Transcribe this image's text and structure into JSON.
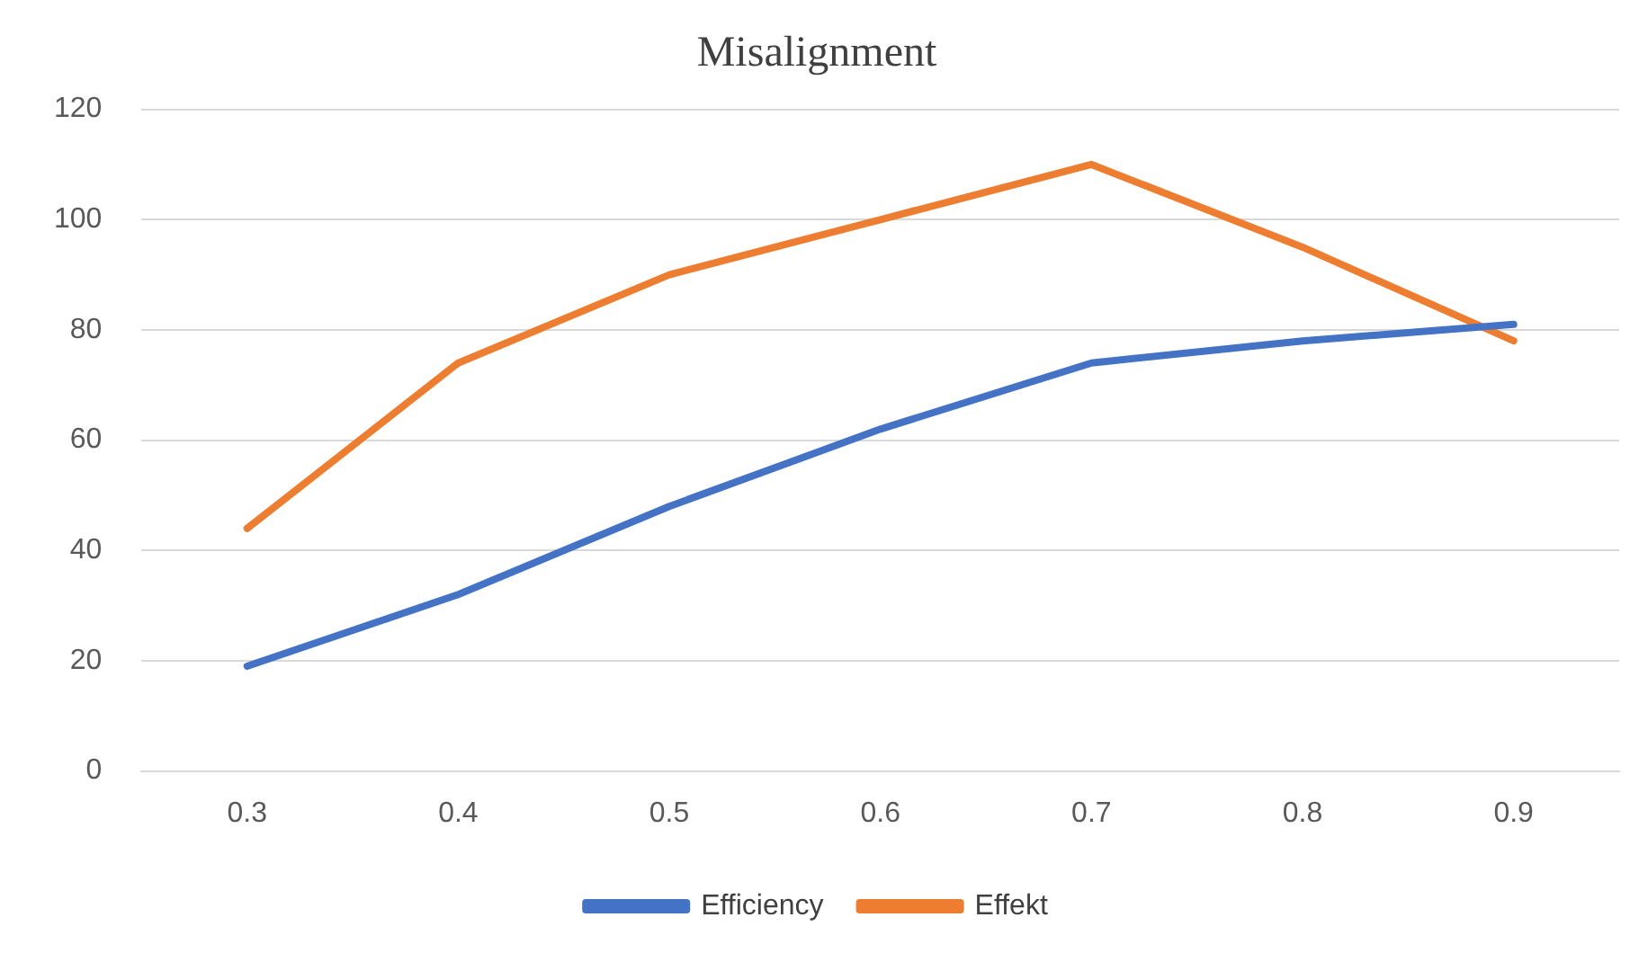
{
  "chart_data": {
    "type": "line",
    "title": "Misalignment",
    "categories": [
      "0.3",
      "0.4",
      "0.5",
      "0.6",
      "0.7",
      "0.8",
      "0.9"
    ],
    "series": [
      {
        "name": "Efficiency",
        "color": "#4472c4",
        "values": [
          19,
          32,
          48,
          62,
          74,
          78,
          81
        ]
      },
      {
        "name": "Effekt",
        "color": "#ed7d31",
        "values": [
          44,
          74,
          90,
          100,
          110,
          95,
          78
        ]
      }
    ],
    "ylim": [
      0,
      120
    ],
    "yticks": [
      0,
      20,
      40,
      60,
      80,
      100,
      120
    ],
    "grid": "y",
    "legend": "bottom",
    "marker": "none",
    "line_style": "solid"
  }
}
